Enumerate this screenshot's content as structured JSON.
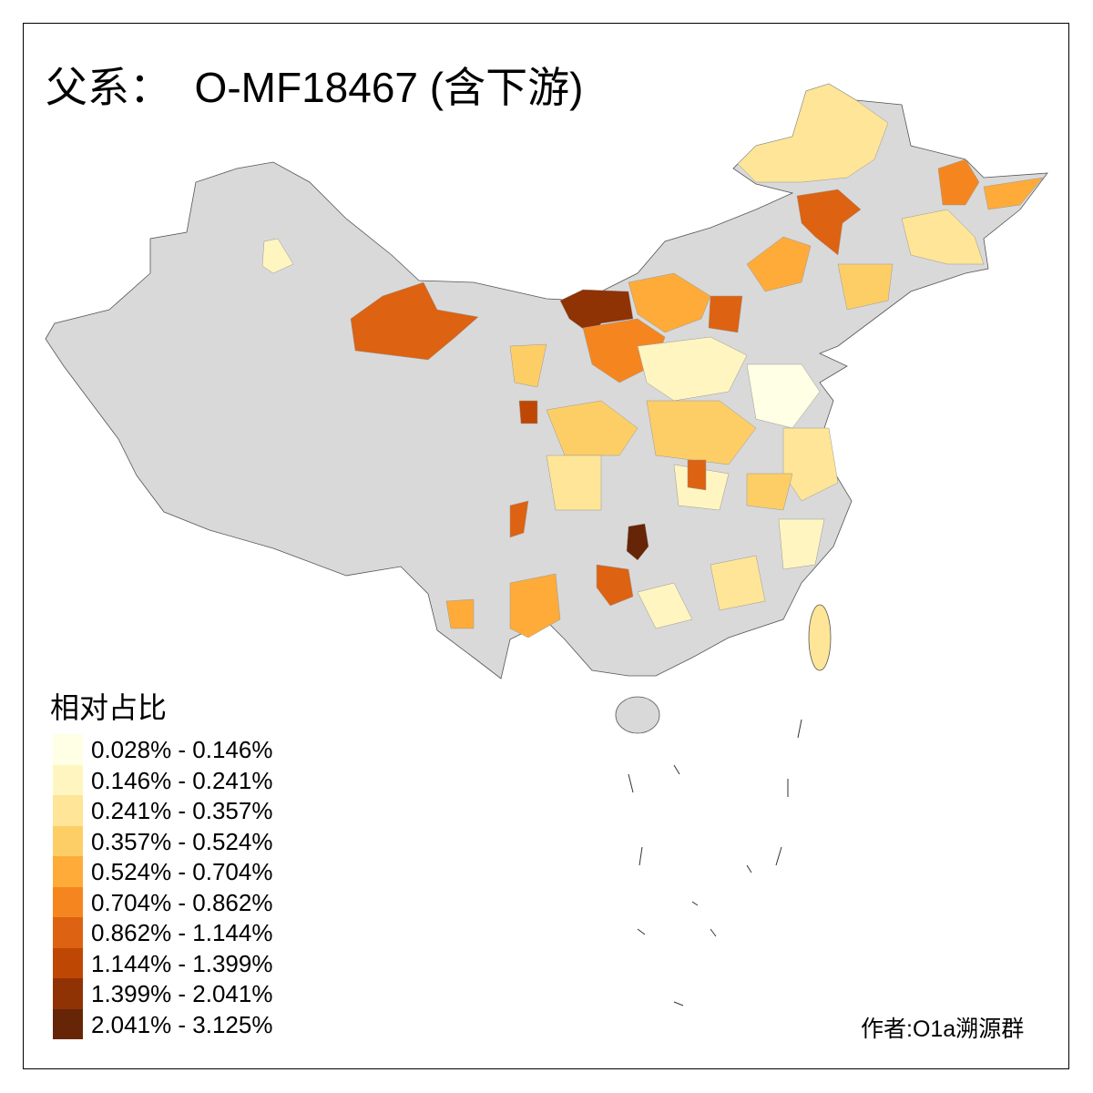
{
  "title": "父系：  O-MF18467 (含下游)",
  "legend": {
    "title": "相对占比",
    "items": [
      {
        "label": "0.028% - 0.146%",
        "color": "#FFFFE5"
      },
      {
        "label": "0.146% - 0.241%",
        "color": "#FFF5C0"
      },
      {
        "label": "0.241% - 0.357%",
        "color": "#FEE597"
      },
      {
        "label": "0.357% - 0.524%",
        "color": "#FECE66"
      },
      {
        "label": "0.524% - 0.704%",
        "color": "#FEAB3A"
      },
      {
        "label": "0.704% - 0.862%",
        "color": "#F5861F"
      },
      {
        "label": "0.862% - 1.144%",
        "color": "#DD6211"
      },
      {
        "label": "1.144% - 1.399%",
        "color": "#BF4704"
      },
      {
        "label": "1.399% - 2.041%",
        "color": "#8F3204"
      },
      {
        "label": "2.041% - 3.125%",
        "color": "#662506"
      }
    ]
  },
  "no_data_color": "#D9D9D9",
  "author": "作者:O1a溯源群"
}
